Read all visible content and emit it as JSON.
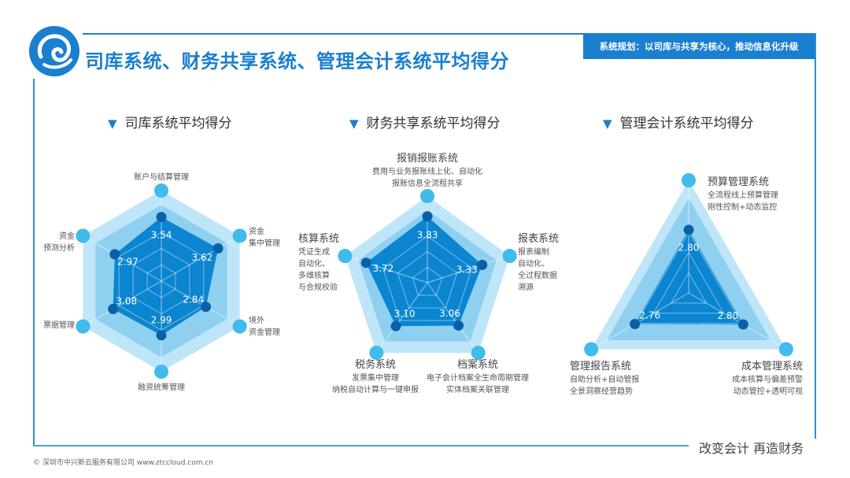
{
  "header": {
    "title": "司库系统、财务共享系统、管理会计系统平均得分",
    "tag": "系统规划：以司库与共享为核心，推动信息化升级"
  },
  "colors": {
    "accent": "#1a7fcf",
    "outer": "#bfe5f8",
    "mid": "#8fd0f0",
    "data": "#0b85d0",
    "point": "#0a5fa8",
    "vertex": "#3fbbec"
  },
  "chart_data": [
    {
      "type": "radar",
      "title": "司库系统平均得分",
      "rmax": 5,
      "categories": [
        "账户与结算管理",
        "资金\n集中管理",
        "境外\n资金管理",
        "融资统筹管理",
        "票据管理",
        "资金\n预测分析"
      ],
      "values": [
        3.54,
        3.62,
        2.84,
        2.99,
        3.08,
        2.97
      ],
      "labels": [
        "3.54",
        "3.62",
        "2.84",
        "2.99",
        "3.08",
        "2.97"
      ]
    },
    {
      "type": "radar",
      "title": "财务共享系统平均得分",
      "rmax": 5,
      "categories": [
        "报销报账系统",
        "报表系统",
        "档案系统",
        "税务系统",
        "核算系统"
      ],
      "descriptions": [
        "费用与业务报账线上化、自动化\n报账信息全流程共享",
        "报表编制\n自动化、\n全过程数据\n溯源",
        "电子会计档案全生命周期管理\n实体档案关联管理",
        "发票集中管理\n纳税自动计算与一键申报",
        "凭证生成\n自动化、\n多维核算\n与合规校验"
      ],
      "values": [
        3.83,
        3.33,
        3.06,
        3.1,
        3.72
      ],
      "labels": [
        "3.83",
        "3.33",
        "3.06",
        "3.10",
        "3.72"
      ]
    },
    {
      "type": "radar",
      "title": "管理会计系统平均得分",
      "rmax": 5,
      "categories": [
        "预算管理系统",
        "成本管理系统",
        "管理报告系统"
      ],
      "descriptions": [
        "全流程线上预算管理\n刚性控制+动态监控",
        "成本核算与偏差预警\n动态管控+透明可视",
        "自助分析+自动管报\n全景洞察经营趋势"
      ],
      "values": [
        2.8,
        2.8,
        2.76
      ],
      "labels": [
        "2.80",
        "2.80",
        "2.76"
      ]
    }
  ],
  "footer": {
    "slogan": "改变会计  再造财务",
    "copyright": "© 深圳市中兴新云服务有限公司  www.ztccloud.com.cn"
  }
}
